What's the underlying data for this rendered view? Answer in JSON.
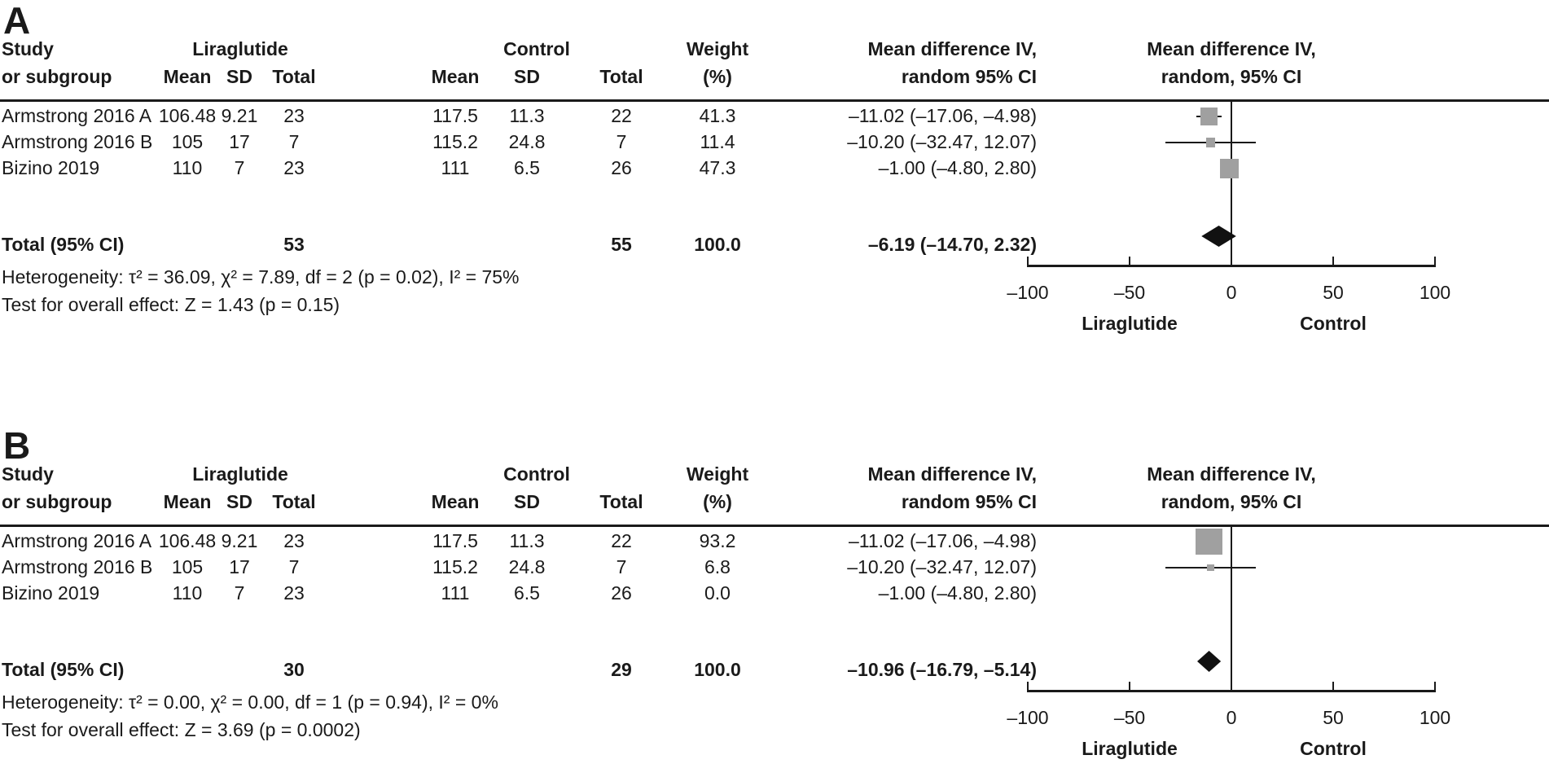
{
  "panels": [
    {
      "panel_label": "A",
      "header": {
        "study_line1": "Study",
        "study_line2": "or subgroup",
        "group1": "Liraglutide",
        "group2": "Control",
        "col_mean": "Mean",
        "col_sd": "SD",
        "col_total": "Total",
        "weight_line1": "Weight",
        "weight_line2": "(%)",
        "md_line1": "Mean difference IV,",
        "md_line2": "random 95% CI",
        "plot_line1": "Mean difference IV,",
        "plot_line2": "random, 95% CI"
      },
      "rows": [
        {
          "study": "Armstrong 2016 A",
          "mean1": "106.48",
          "sd1": "9.21",
          "total1": "23",
          "mean2": "117.5",
          "sd2": "11.3",
          "total2": "22",
          "weight": "41.3",
          "md": "–11.02 (–17.06, –4.98)"
        },
        {
          "study": "Armstrong 2016 B",
          "mean1": "105",
          "sd1": "17",
          "total1": "7",
          "mean2": "115.2",
          "sd2": "24.8",
          "total2": "7",
          "weight": "11.4",
          "md": "–10.20 (–32.47, 12.07)"
        },
        {
          "study": "Bizino 2019",
          "mean1": "110",
          "sd1": "7",
          "total1": "23",
          "mean2": "111",
          "sd2": "6.5",
          "total2": "26",
          "weight": "47.3",
          "md": "–1.00 (–4.80, 2.80)"
        }
      ],
      "total_row": {
        "label": "Total (95% CI)",
        "total1": "53",
        "total2": "55",
        "weight": "100.0",
        "md": "–6.19 (–14.70, 2.32)"
      },
      "heterogeneity": "Heterogeneity: τ² = 36.09, χ² = 7.89, df = 2 (p = 0.02), I² = 75%",
      "overall_effect": "Test for overall effect: Z = 1.43 (p = 0.15)",
      "chart_data": {
        "type": "forest",
        "xlim": [
          -100,
          100
        ],
        "x_ticks": [
          -100,
          -50,
          0,
          50,
          100
        ],
        "tick_labels": [
          "–100",
          "–50",
          "0",
          "50",
          "100"
        ],
        "axis_label_left": "Liraglutide",
        "axis_label_right": "Control",
        "marker_color": "#a0a0a0",
        "studies": [
          {
            "name": "Armstrong 2016 A",
            "md": -11.02,
            "ci_low": -17.06,
            "ci_high": -4.98,
            "weight": 41.3
          },
          {
            "name": "Armstrong 2016 B",
            "md": -10.2,
            "ci_low": -32.47,
            "ci_high": 12.07,
            "weight": 11.4
          },
          {
            "name": "Bizino 2019",
            "md": -1.0,
            "ci_low": -4.8,
            "ci_high": 2.8,
            "weight": 47.3
          }
        ],
        "total": {
          "md": -6.19,
          "ci_low": -14.7,
          "ci_high": 2.32
        }
      }
    },
    {
      "panel_label": "B",
      "header": {
        "study_line1": "Study",
        "study_line2": "or subgroup",
        "group1": "Liraglutide",
        "group2": "Control",
        "col_mean": "Mean",
        "col_sd": "SD",
        "col_total": "Total",
        "weight_line1": "Weight",
        "weight_line2": "(%)",
        "md_line1": "Mean difference IV,",
        "md_line2": "random 95% CI",
        "plot_line1": "Mean difference IV,",
        "plot_line2": "random, 95% CI"
      },
      "rows": [
        {
          "study": "Armstrong 2016 A",
          "mean1": "106.48",
          "sd1": "9.21",
          "total1": "23",
          "mean2": "117.5",
          "sd2": "11.3",
          "total2": "22",
          "weight": "93.2",
          "md": "–11.02 (–17.06, –4.98)"
        },
        {
          "study": "Armstrong 2016 B",
          "mean1": "105",
          "sd1": "17",
          "total1": "7",
          "mean2": "115.2",
          "sd2": "24.8",
          "total2": "7",
          "weight": "6.8",
          "md": "–10.20 (–32.47, 12.07)"
        },
        {
          "study": "Bizino 2019",
          "mean1": "110",
          "sd1": "7",
          "total1": "23",
          "mean2": "111",
          "sd2": "6.5",
          "total2": "26",
          "weight": "0.0",
          "md": "–1.00 (–4.80, 2.80)"
        }
      ],
      "total_row": {
        "label": "Total (95% CI)",
        "total1": "30",
        "total2": "29",
        "weight": "100.0",
        "md": "–10.96 (–16.79, –5.14)"
      },
      "heterogeneity": "Heterogeneity: τ² = 0.00, χ² = 0.00, df = 1 (p = 0.94), I² = 0%",
      "overall_effect": "Test for overall effect: Z = 3.69 (p = 0.0002)",
      "chart_data": {
        "type": "forest",
        "xlim": [
          -100,
          100
        ],
        "x_ticks": [
          -100,
          -50,
          0,
          50,
          100
        ],
        "tick_labels": [
          "–100",
          "–50",
          "0",
          "50",
          "100"
        ],
        "axis_label_left": "Liraglutide",
        "axis_label_right": "Control",
        "marker_color": "#a0a0a0",
        "studies": [
          {
            "name": "Armstrong 2016 A",
            "md": -11.02,
            "ci_low": -17.06,
            "ci_high": -4.98,
            "weight": 93.2
          },
          {
            "name": "Armstrong 2016 B",
            "md": -10.2,
            "ci_low": -32.47,
            "ci_high": 12.07,
            "weight": 6.8
          },
          {
            "name": "Bizino 2019",
            "md": -1.0,
            "ci_low": -4.8,
            "ci_high": 2.8,
            "weight": 0.0
          }
        ],
        "total": {
          "md": -10.96,
          "ci_low": -16.79,
          "ci_high": -5.14
        }
      }
    }
  ]
}
